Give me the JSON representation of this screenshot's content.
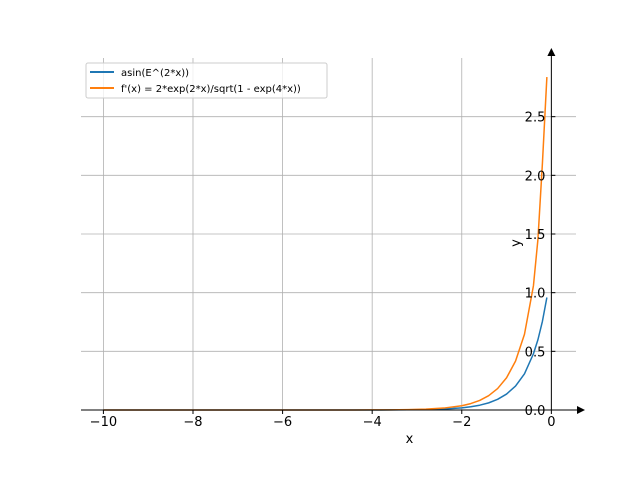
{
  "chart_data": {
    "type": "line",
    "title": "",
    "xlabel": "x",
    "ylabel": "y",
    "xlim": [
      -10.5,
      0.55
    ],
    "ylim": [
      0.0,
      3.0
    ],
    "x_ticks": [
      -10,
      -8,
      -6,
      -4,
      -2,
      0
    ],
    "x_tick_labels": [
      "−10",
      "−8",
      "−6",
      "−4",
      "−2",
      "0"
    ],
    "y_ticks": [
      0.0,
      0.5,
      1.0,
      1.5,
      2.0,
      2.5
    ],
    "y_tick_labels": [
      "0.0",
      "0.5",
      "1.0",
      "1.5",
      "2.0",
      "2.5"
    ],
    "grid": true,
    "legend_position": "top-left",
    "series": [
      {
        "name": "asin(E^(2*x))",
        "color": "#1f77b4",
        "x": [
          -10.0,
          -9.6,
          -9.2,
          -8.8,
          -8.4,
          -8.0,
          -7.6,
          -7.2,
          -6.8,
          -6.4,
          -6.0,
          -5.6,
          -5.2,
          -4.8,
          -4.4,
          -4.0,
          -3.6,
          -3.2,
          -2.8,
          -2.4,
          -2.0,
          -1.8,
          -1.6,
          -1.4,
          -1.2,
          -1.0,
          -0.8,
          -0.6,
          -0.4,
          -0.3,
          -0.2,
          -0.1
        ],
        "y": [
          0.0,
          0.0,
          0.0,
          0.0,
          0.0,
          0.0,
          0.0,
          0.0,
          0.0,
          0.0,
          0.0,
          0.0,
          0.0,
          0.0,
          0.0,
          0.0003,
          0.0007,
          0.0017,
          0.0037,
          0.0082,
          0.0183,
          0.0273,
          0.0408,
          0.0608,
          0.0909,
          0.1357,
          0.2036,
          0.3082,
          0.4794,
          0.5987,
          0.7552,
          0.9585
        ]
      },
      {
        "name": "f'(x) = 2*exp(2*x)/sqrt(1 - exp(4*x))",
        "color": "#ff7f0e",
        "x": [
          -10.0,
          -9.6,
          -9.2,
          -8.8,
          -8.4,
          -8.0,
          -7.6,
          -7.2,
          -6.8,
          -6.4,
          -6.0,
          -5.6,
          -5.2,
          -4.8,
          -4.4,
          -4.0,
          -3.6,
          -3.2,
          -2.8,
          -2.4,
          -2.0,
          -1.8,
          -1.6,
          -1.4,
          -1.2,
          -1.0,
          -0.8,
          -0.6,
          -0.4,
          -0.3,
          -0.2,
          -0.1
        ],
        "y": [
          0.0,
          0.0,
          0.0,
          0.0,
          0.0,
          0.0,
          0.0,
          0.0,
          0.0,
          0.0,
          0.0,
          0.0,
          0.0,
          0.0001,
          0.0003,
          0.0007,
          0.0015,
          0.0033,
          0.0074,
          0.0165,
          0.0366,
          0.0546,
          0.0816,
          0.1219,
          0.1827,
          0.2747,
          0.4165,
          0.6454,
          1.0594,
          1.4538,
          2.1007,
          2.8373
        ]
      }
    ]
  }
}
